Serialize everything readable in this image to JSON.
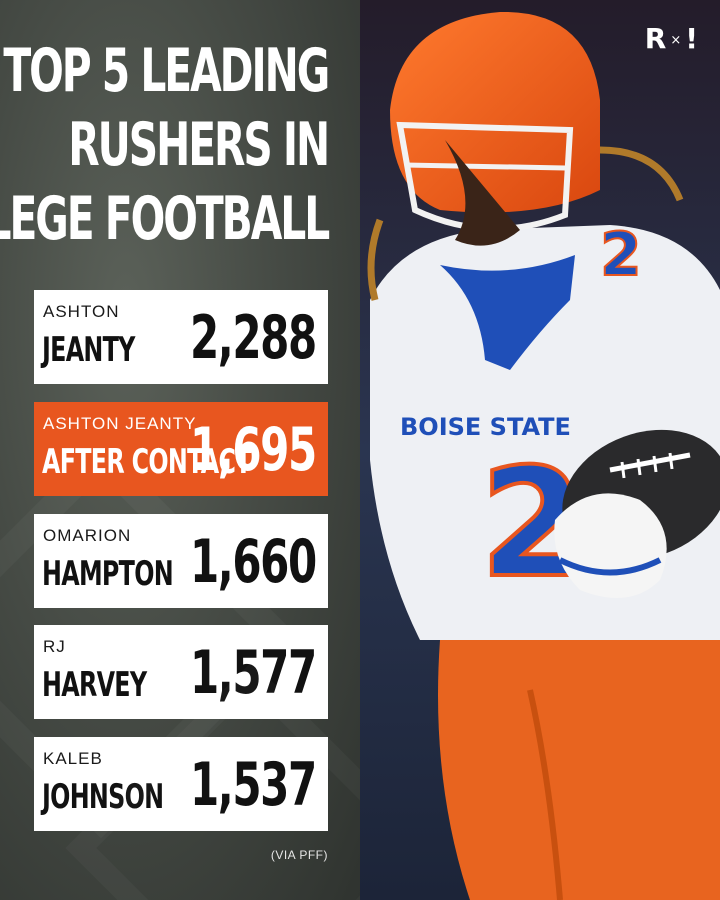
{
  "title": {
    "lines": [
      "TOP 5 LEADING",
      "RUSHERS IN",
      "COLLEGE FOOTBALL"
    ]
  },
  "brand": {
    "left_mark": "R",
    "separator": "×",
    "right_mark": "!"
  },
  "rushers": [
    {
      "first": "ASHTON",
      "last": "JEANTY",
      "yards": "2,288",
      "highlight": false
    },
    {
      "first": "ASHTON JEANTY",
      "last": "AFTER CONTACT",
      "yards": "1,695",
      "highlight": true
    },
    {
      "first": "OMARION",
      "last": "HAMPTON",
      "yards": "1,660",
      "highlight": false
    },
    {
      "first": "RJ",
      "last": "HARVEY",
      "yards": "1,577",
      "highlight": false
    },
    {
      "first": "KALEB",
      "last": "JOHNSON",
      "yards": "1,537",
      "highlight": false
    }
  ],
  "source": "(VIA PFF)",
  "photo": {
    "jersey_text": "BOISE STATE",
    "jersey_number": "2"
  },
  "colors": {
    "accent_orange": "#e8561f",
    "card_white": "#ffffff",
    "panel_dark": "#464b45",
    "boise_blue": "#1f4fb8"
  }
}
